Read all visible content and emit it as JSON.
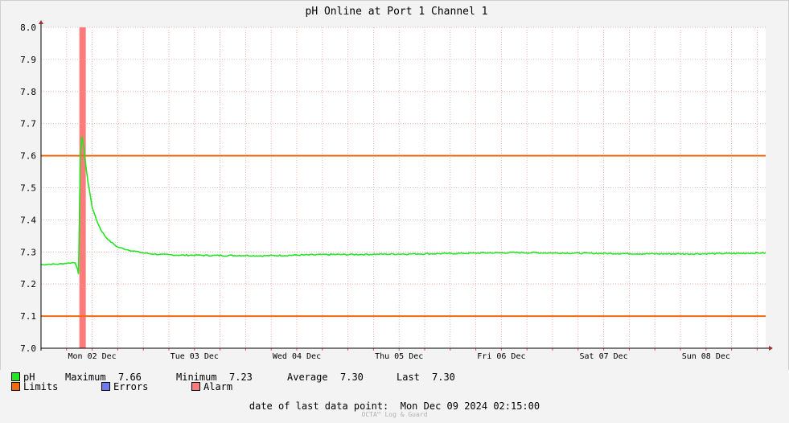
{
  "chart_data": {
    "type": "line",
    "title": "pH Online at Port 1 Channel 1",
    "ylim": [
      7.0,
      8.0
    ],
    "y_ticks": [
      "7.0",
      "7.1",
      "7.2",
      "7.3",
      "7.4",
      "7.5",
      "7.6",
      "7.7",
      "7.8",
      "7.9",
      "8.0"
    ],
    "x_range_hours": [
      0,
      170
    ],
    "x_tick_labels": [
      {
        "label": "Mon 02 Dec",
        "hour": 12
      },
      {
        "label": "Tue 03 Dec",
        "hour": 36
      },
      {
        "label": "Wed 04 Dec",
        "hour": 60
      },
      {
        "label": "Thu 05 Dec",
        "hour": 84
      },
      {
        "label": "Fri 06 Dec",
        "hour": 108
      },
      {
        "label": "Sat 07 Dec",
        "hour": 132
      },
      {
        "label": "Sun 08 Dec",
        "hour": 156
      }
    ],
    "grid": true,
    "limits": [
      7.6,
      7.1
    ],
    "alarm_band_hours": [
      9,
      10.5
    ],
    "series": [
      {
        "name": "pH",
        "color": "#22e622",
        "x": [
          0,
          2,
          4,
          6,
          8,
          8.5,
          8.8,
          9.0,
          9.2,
          9.6,
          10,
          10.5,
          11,
          12,
          13,
          14,
          15,
          16,
          18,
          20,
          22,
          24,
          26,
          28,
          30,
          33,
          36,
          40,
          44,
          48,
          52,
          56,
          60,
          64,
          68,
          72,
          80,
          88,
          96,
          104,
          112,
          120,
          128,
          136,
          144,
          152,
          160,
          170
        ],
        "y": [
          7.26,
          7.262,
          7.262,
          7.265,
          7.267,
          7.25,
          7.23,
          7.4,
          7.6,
          7.66,
          7.63,
          7.57,
          7.52,
          7.44,
          7.4,
          7.37,
          7.35,
          7.335,
          7.315,
          7.308,
          7.302,
          7.297,
          7.294,
          7.292,
          7.291,
          7.29,
          7.29,
          7.289,
          7.289,
          7.289,
          7.288,
          7.289,
          7.29,
          7.291,
          7.292,
          7.292,
          7.293,
          7.294,
          7.295,
          7.297,
          7.298,
          7.297,
          7.296,
          7.295,
          7.294,
          7.294,
          7.295,
          7.297
        ]
      }
    ]
  },
  "legend": {
    "ph_label": "pH",
    "ph_color": "#22e622",
    "max_label": "Maximum",
    "max_value": "7.66",
    "min_label": "Minimum",
    "min_value": "7.23",
    "avg_label": "Average",
    "avg_value": "7.30",
    "last_label": "Last",
    "last_value": "7.30",
    "limits_label": "Limits",
    "limits_color": "#f26a10",
    "errors_label": "Errors",
    "errors_color": "#6f7cf0",
    "alarm_label": "Alarm",
    "alarm_color": "#ff7a7a"
  },
  "footer": {
    "label": "date of last data point:",
    "value": "Mon Dec 09 2024 02:15:00",
    "brand": "OCTA™ Log & Guard"
  }
}
